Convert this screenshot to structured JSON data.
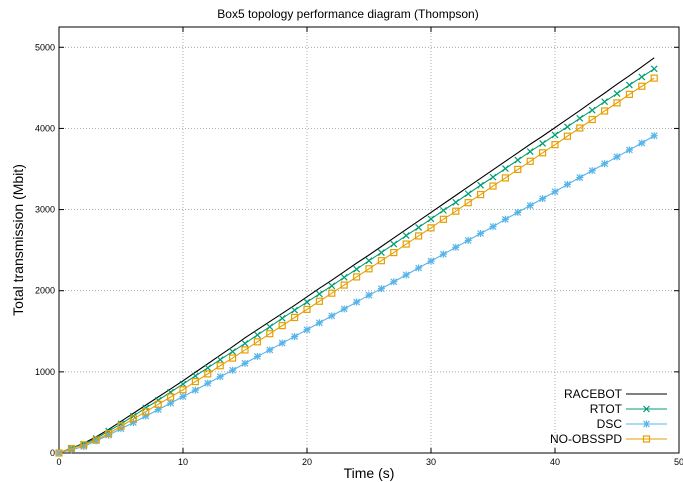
{
  "chart_data": {
    "type": "line",
    "title": "Box5 topology performance diagram (Thompson)",
    "xlabel": "Time (s)",
    "ylabel": "Total transmission (Mbit)",
    "xlim": [
      0,
      50
    ],
    "ylim": [
      0,
      5250
    ],
    "xticks": [
      0,
      10,
      20,
      30,
      40,
      50
    ],
    "yticks": [
      0,
      1000,
      2000,
      3000,
      4000,
      5000
    ],
    "grid": true,
    "legend_position": "bottom-right",
    "x": [
      0,
      1,
      2,
      3,
      4,
      5,
      6,
      7,
      8,
      9,
      10,
      11,
      12,
      13,
      14,
      15,
      16,
      17,
      18,
      19,
      20,
      21,
      22,
      23,
      24,
      25,
      26,
      27,
      28,
      29,
      30,
      31,
      32,
      33,
      34,
      35,
      36,
      37,
      38,
      39,
      40,
      41,
      42,
      43,
      44,
      45,
      46,
      47,
      48
    ],
    "series": [
      {
        "name": "RACEBOT",
        "color": "#000000",
        "marker": "none",
        "values": [
          0,
          60,
          120,
          200,
          290,
          390,
          490,
          590,
          690,
          790,
          890,
          995,
          1100,
          1205,
          1310,
          1420,
          1520,
          1620,
          1720,
          1820,
          1925,
          2030,
          2130,
          2235,
          2340,
          2440,
          2545,
          2650,
          2755,
          2860,
          2965,
          3070,
          3175,
          3280,
          3385,
          3490,
          3595,
          3700,
          3805,
          3905,
          4010,
          4115,
          4220,
          4330,
          4435,
          4545,
          4650,
          4760,
          4870
        ]
      },
      {
        "name": "RTOT",
        "color": "#009e73",
        "marker": "x",
        "values": [
          0,
          60,
          110,
          180,
          270,
          360,
          455,
          555,
          650,
          750,
          850,
          950,
          1050,
          1150,
          1250,
          1350,
          1455,
          1555,
          1660,
          1760,
          1860,
          1960,
          2060,
          2165,
          2265,
          2370,
          2470,
          2575,
          2680,
          2780,
          2885,
          2990,
          3090,
          3195,
          3300,
          3400,
          3505,
          3610,
          3715,
          3815,
          3920,
          4020,
          4125,
          4225,
          4330,
          4430,
          4535,
          4635,
          4735
        ]
      },
      {
        "name": "DSC",
        "color": "#56b4e9",
        "marker": "star",
        "values": [
          0,
          40,
          80,
          150,
          220,
          300,
          375,
          455,
          535,
          615,
          695,
          775,
          860,
          940,
          1020,
          1105,
          1190,
          1270,
          1355,
          1435,
          1520,
          1605,
          1690,
          1775,
          1860,
          1945,
          2025,
          2110,
          2195,
          2280,
          2365,
          2450,
          2535,
          2620,
          2705,
          2790,
          2880,
          2965,
          3050,
          3135,
          3220,
          3310,
          3395,
          3480,
          3565,
          3650,
          3735,
          3820,
          3910
        ]
      },
      {
        "name": "NO-OBSSPD",
        "color": "#e69f00",
        "marker": "square",
        "values": [
          0,
          55,
          100,
          160,
          240,
          330,
          420,
          510,
          600,
          690,
          780,
          880,
          975,
          1075,
          1170,
          1270,
          1370,
          1470,
          1570,
          1670,
          1770,
          1870,
          1970,
          2070,
          2170,
          2270,
          2370,
          2470,
          2575,
          2675,
          2775,
          2880,
          2980,
          3085,
          3185,
          3290,
          3390,
          3495,
          3595,
          3700,
          3800,
          3905,
          4005,
          4110,
          4215,
          4315,
          4420,
          4520,
          4620
        ]
      }
    ]
  }
}
